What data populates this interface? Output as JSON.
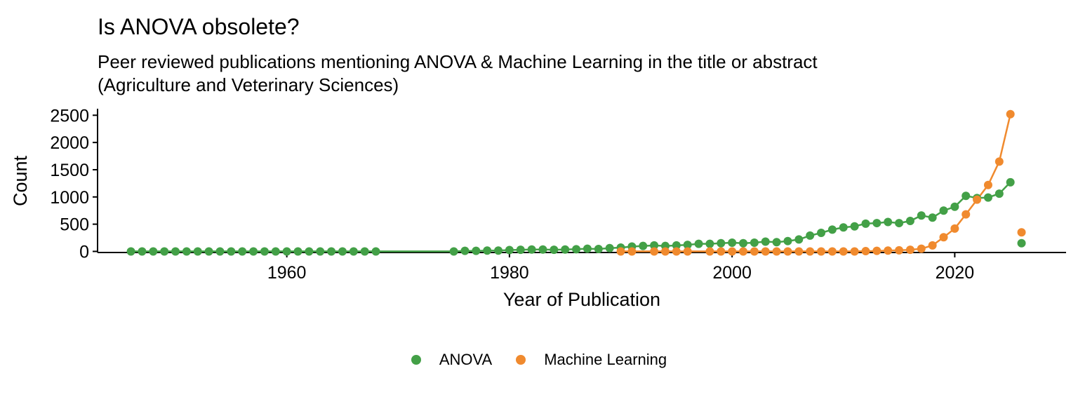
{
  "colors": {
    "anova": "#43A047",
    "ml": "#F08A2E",
    "axis": "#000000"
  },
  "chart_data": {
    "type": "line",
    "title": "Is ANOVA obsolete?",
    "subtitle": "Peer reviewed publications mentioning ANOVA & Machine Learning in the title or abstract\n(Agriculture and Veterinary Sciences)",
    "xlabel": "Year of Publication",
    "ylabel": "Count",
    "xlim": [
      1943,
      2030
    ],
    "ylim": [
      -20,
      2620
    ],
    "xticks": [
      1960,
      1980,
      2000,
      2020
    ],
    "yticks": [
      0,
      500,
      1000,
      1500,
      2000,
      2500
    ],
    "legend_position": "bottom",
    "grid": false,
    "series": [
      {
        "name": "ANOVA",
        "color_key": "anova",
        "x": [
          1946,
          1947,
          1948,
          1949,
          1950,
          1951,
          1952,
          1953,
          1954,
          1955,
          1956,
          1957,
          1958,
          1959,
          1960,
          1961,
          1962,
          1963,
          1964,
          1965,
          1966,
          1967,
          1968,
          1975,
          1976,
          1977,
          1978,
          1979,
          1980,
          1981,
          1982,
          1983,
          1984,
          1985,
          1986,
          1987,
          1988,
          1989,
          1990,
          1991,
          1992,
          1993,
          1994,
          1995,
          1996,
          1997,
          1998,
          1999,
          2000,
          2001,
          2002,
          2003,
          2004,
          2005,
          2006,
          2007,
          2008,
          2009,
          2010,
          2011,
          2012,
          2013,
          2014,
          2015,
          2016,
          2017,
          2018,
          2019,
          2020,
          2021,
          2022,
          2023,
          2024,
          2025
        ],
        "y": [
          0,
          0,
          0,
          0,
          0,
          0,
          0,
          0,
          0,
          0,
          0,
          0,
          0,
          0,
          0,
          0,
          0,
          0,
          0,
          0,
          0,
          0,
          0,
          0,
          10,
          10,
          15,
          15,
          25,
          30,
          35,
          35,
          30,
          35,
          40,
          50,
          45,
          60,
          70,
          90,
          100,
          110,
          100,
          110,
          120,
          140,
          140,
          150,
          160,
          150,
          160,
          180,
          170,
          190,
          220,
          290,
          340,
          400,
          440,
          460,
          510,
          520,
          540,
          520,
          560,
          660,
          620,
          750,
          820,
          1020,
          980,
          990,
          1060,
          1270
        ]
      },
      {
        "name": "Machine Learning",
        "color_key": "ml",
        "x": [
          1990,
          1991,
          1993,
          1994,
          1995,
          1996,
          1998,
          1999,
          2000,
          2001,
          2002,
          2003,
          2004,
          2005,
          2006,
          2007,
          2008,
          2009,
          2010,
          2011,
          2012,
          2013,
          2014,
          2015,
          2016,
          2017,
          2018,
          2019,
          2020,
          2021,
          2022,
          2023,
          2024,
          2025
        ],
        "y": [
          0,
          0,
          0,
          0,
          0,
          0,
          0,
          0,
          0,
          0,
          0,
          0,
          0,
          0,
          0,
          0,
          0,
          0,
          0,
          0,
          5,
          10,
          15,
          20,
          30,
          50,
          110,
          260,
          420,
          680,
          950,
          1220,
          1650,
          2520
        ]
      }
    ],
    "extra_points": [
      {
        "series": "ANOVA",
        "x": 2026,
        "y": 150
      },
      {
        "series": "Machine Learning",
        "x": 2026,
        "y": 350
      }
    ]
  }
}
